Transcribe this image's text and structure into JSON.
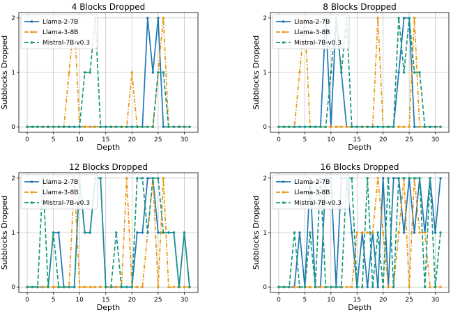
{
  "figure": {
    "y_label": "Subblocks Dropped",
    "x_label": "Depth"
  },
  "chart_data": [
    {
      "type": "line",
      "title": "4 Blocks Dropped",
      "xlabel": "Depth",
      "ylabel": "Subblocks Dropped",
      "xlim": [
        -1.6,
        32.6
      ],
      "ylim": [
        -0.1,
        2.1
      ],
      "xticks": [
        0,
        5,
        10,
        15,
        20,
        25,
        30
      ],
      "yticks": [
        0,
        1,
        2
      ],
      "grid": true,
      "legend_position": "upper-left",
      "x": [
        0,
        1,
        2,
        3,
        4,
        5,
        6,
        7,
        8,
        9,
        10,
        11,
        12,
        13,
        14,
        15,
        16,
        17,
        18,
        19,
        20,
        21,
        22,
        23,
        24,
        25,
        26,
        27,
        28,
        29,
        30,
        31
      ],
      "series": [
        {
          "name": "Llama-2-7B",
          "color": "#1f77b4",
          "style": "solid",
          "marker": "dot",
          "values": [
            0,
            0,
            0,
            0,
            0,
            0,
            0,
            0,
            0,
            0,
            0,
            0,
            0,
            0,
            0,
            0,
            0,
            0,
            0,
            0,
            0,
            0,
            0,
            2,
            1,
            2,
            0,
            0,
            0,
            0,
            0,
            0
          ]
        },
        {
          "name": "Llama-3-8B",
          "color": "#e8960e",
          "style": "dashdot",
          "marker": "dot",
          "values": [
            0,
            0,
            0,
            0,
            0,
            0,
            0,
            0,
            1,
            2,
            0,
            0,
            0,
            0,
            0,
            0,
            0,
            0,
            0,
            0,
            1,
            0,
            0,
            0,
            0,
            1,
            2,
            0,
            0,
            0,
            0,
            0
          ]
        },
        {
          "name": "Mistral-7B-v0.3",
          "color": "#17987e",
          "style": "dashed",
          "marker": "dot",
          "values": [
            0,
            0,
            0,
            0,
            0,
            0,
            0,
            0,
            0,
            0,
            0,
            1,
            1,
            2,
            0,
            0,
            0,
            0,
            0,
            0,
            0,
            0,
            0,
            0,
            0,
            1,
            1,
            0,
            0,
            0,
            0,
            0
          ]
        }
      ]
    },
    {
      "type": "line",
      "title": "8 Blocks Dropped",
      "xlabel": "Depth",
      "ylabel": "Subblocks Dropped",
      "xlim": [
        -1.6,
        32.6
      ],
      "ylim": [
        -0.1,
        2.1
      ],
      "xticks": [
        0,
        5,
        10,
        15,
        20,
        25,
        30
      ],
      "yticks": [
        0,
        1,
        2
      ],
      "grid": true,
      "legend_position": "upper-left",
      "x": [
        0,
        1,
        2,
        3,
        4,
        5,
        6,
        7,
        8,
        9,
        10,
        11,
        12,
        13,
        14,
        15,
        16,
        17,
        18,
        19,
        20,
        21,
        22,
        23,
        24,
        25,
        26,
        27,
        28,
        29,
        30,
        31
      ],
      "series": [
        {
          "name": "Llama-2-7B",
          "color": "#1f77b4",
          "style": "solid",
          "marker": "dot",
          "values": [
            0,
            0,
            0,
            0,
            0,
            0,
            0,
            0,
            0,
            2,
            0,
            2,
            1,
            0,
            0,
            0,
            0,
            0,
            0,
            0,
            0,
            0,
            0,
            1,
            2,
            2,
            0,
            0,
            0,
            0,
            0,
            0
          ]
        },
        {
          "name": "Llama-3-8B",
          "color": "#e8960e",
          "style": "dashdot",
          "marker": "dot",
          "values": [
            0,
            0,
            0,
            0,
            1,
            2,
            0,
            0,
            0,
            0,
            0,
            0,
            0,
            0,
            0,
            0,
            0,
            0,
            0,
            2,
            0,
            0,
            0,
            0,
            0,
            0,
            2,
            0,
            0,
            0,
            0,
            0
          ]
        },
        {
          "name": "Mistral-7B-v0.3",
          "color": "#17987e",
          "style": "dashed",
          "marker": "dot",
          "values": [
            0,
            0,
            0,
            0,
            0,
            0,
            0,
            0,
            0,
            0,
            1,
            2,
            1,
            2,
            0,
            0,
            0,
            0,
            0,
            0,
            0,
            0,
            0,
            2,
            1,
            2,
            1,
            1,
            0,
            0,
            0,
            0
          ]
        }
      ]
    },
    {
      "type": "line",
      "title": "12 Blocks Dropped",
      "xlabel": "Depth",
      "ylabel": "Subblocks Dropped",
      "xlim": [
        -1.6,
        32.6
      ],
      "ylim": [
        -0.1,
        2.1
      ],
      "xticks": [
        0,
        5,
        10,
        15,
        20,
        25,
        30
      ],
      "yticks": [
        0,
        1,
        2
      ],
      "grid": true,
      "legend_position": "upper-left",
      "x": [
        0,
        1,
        2,
        3,
        4,
        5,
        6,
        7,
        8,
        9,
        10,
        11,
        12,
        13,
        14,
        15,
        16,
        17,
        18,
        19,
        20,
        21,
        22,
        23,
        24,
        25,
        26,
        27,
        28,
        29,
        30,
        31
      ],
      "series": [
        {
          "name": "Llama-2-7B",
          "color": "#1f77b4",
          "style": "solid",
          "marker": "dot",
          "values": [
            0,
            0,
            0,
            0,
            0,
            1,
            1,
            0,
            0,
            0,
            2,
            1,
            1,
            2,
            2,
            0,
            0,
            0,
            0,
            0,
            0,
            1,
            1,
            2,
            2,
            1,
            1,
            1,
            1,
            0,
            1,
            0
          ]
        },
        {
          "name": "Llama-3-8B",
          "color": "#e8960e",
          "style": "dashdot",
          "marker": "dot",
          "values": [
            0,
            0,
            0,
            0,
            0,
            0,
            0,
            0,
            0,
            2,
            0,
            0,
            0,
            0,
            0,
            0,
            0,
            0,
            0,
            2,
            0,
            0,
            0,
            1,
            2,
            0,
            2,
            0,
            0,
            0,
            0,
            0
          ]
        },
        {
          "name": "Mistral-7B-v0.3",
          "color": "#17987e",
          "style": "dashed",
          "marker": "dot",
          "values": [
            0,
            0,
            0,
            2,
            0,
            1,
            0,
            0,
            0,
            0,
            2,
            1,
            1,
            2,
            2,
            0,
            0,
            1,
            0,
            0,
            0,
            2,
            2,
            1,
            2,
            2,
            1,
            1,
            1,
            0,
            1,
            0
          ]
        }
      ]
    },
    {
      "type": "line",
      "title": "16 Blocks Dropped",
      "xlabel": "Depth",
      "ylabel": "Subblocks Dropped",
      "xlim": [
        -1.6,
        32.6
      ],
      "ylim": [
        -0.1,
        2.1
      ],
      "xticks": [
        0,
        5,
        10,
        15,
        20,
        25,
        30
      ],
      "yticks": [
        0,
        1,
        2
      ],
      "grid": true,
      "legend_position": "upper-left",
      "x": [
        0,
        1,
        2,
        3,
        4,
        5,
        6,
        7,
        8,
        9,
        10,
        11,
        12,
        13,
        14,
        15,
        16,
        17,
        18,
        19,
        20,
        21,
        22,
        23,
        24,
        25,
        26,
        27,
        28,
        29,
        30,
        31
      ],
      "series": [
        {
          "name": "Llama-2-7B",
          "color": "#1f77b4",
          "style": "solid",
          "marker": "dot",
          "values": [
            0,
            0,
            0,
            0,
            1,
            0,
            2,
            0,
            0,
            2,
            2,
            0,
            2,
            2,
            1,
            0,
            1,
            0,
            1,
            0,
            2,
            0,
            2,
            2,
            1,
            2,
            1,
            2,
            1,
            2,
            1,
            2
          ]
        },
        {
          "name": "Llama-3-8B",
          "color": "#e8960e",
          "style": "dashdot",
          "marker": "dot",
          "values": [
            0,
            0,
            0,
            0,
            0,
            0,
            0,
            0,
            0,
            0,
            0,
            0,
            0,
            0,
            0,
            1,
            1,
            1,
            1,
            2,
            1,
            0,
            0,
            1,
            2,
            0,
            2,
            1,
            1,
            0,
            0,
            0
          ]
        },
        {
          "name": "Mistral-7B-v0.3",
          "color": "#17987e",
          "style": "dashed",
          "marker": "dot",
          "values": [
            0,
            0,
            0,
            1,
            0,
            0,
            1,
            0,
            2,
            0,
            0,
            0,
            0,
            2,
            2,
            0,
            0,
            2,
            0,
            1,
            0,
            2,
            0,
            2,
            2,
            2,
            2,
            2,
            0,
            2,
            0,
            1
          ]
        }
      ]
    }
  ]
}
